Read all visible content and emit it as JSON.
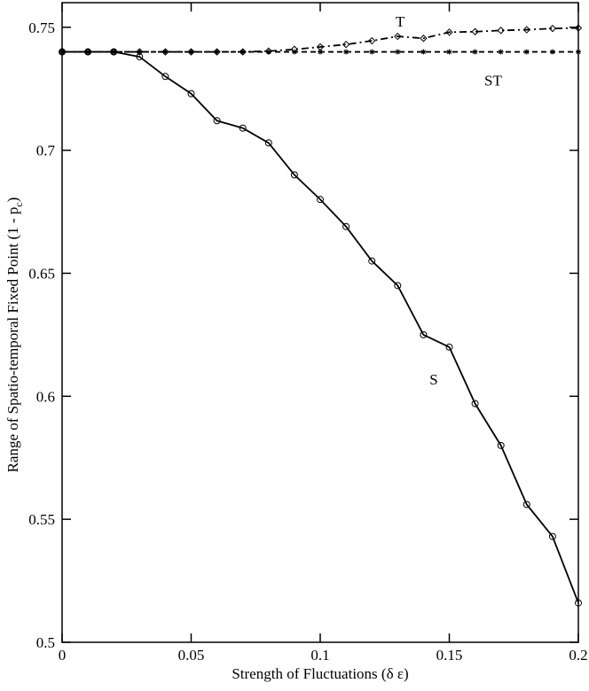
{
  "chart_data": {
    "type": "line",
    "xlabel": "Strength of Fluctuations  (δ ε)",
    "ylabel": [
      "Range of Spatio-temporal Fixed Point  (1 - p",
      "c",
      ")"
    ],
    "x": [
      0,
      0.01,
      0.02,
      0.03,
      0.04,
      0.05,
      0.06,
      0.07,
      0.08,
      0.09,
      0.1,
      0.11,
      0.12,
      0.13,
      0.14,
      0.15,
      0.16,
      0.17,
      0.18,
      0.19,
      0.2
    ],
    "series": [
      {
        "name": "S",
        "color": "#000000",
        "marker": "circle",
        "dash": "solid",
        "values": [
          0.74,
          0.74,
          0.74,
          0.738,
          0.73,
          0.723,
          0.712,
          0.709,
          0.703,
          0.69,
          0.68,
          0.669,
          0.655,
          0.645,
          0.625,
          0.62,
          0.597,
          0.58,
          0.556,
          0.543,
          0.516
        ]
      },
      {
        "name": "T",
        "color": "#000000",
        "marker": "diamond",
        "dash": "dashdot",
        "values": [
          0.74,
          0.74,
          0.74,
          0.74,
          0.74,
          0.74,
          0.74,
          0.74,
          0.7403,
          0.741,
          0.742,
          0.743,
          0.7445,
          0.7463,
          0.7455,
          0.748,
          0.7482,
          0.7487,
          0.749,
          0.7495,
          0.7497
        ]
      },
      {
        "name": "ST",
        "color": "#000000",
        "marker": "star",
        "dash": "dashed",
        "values": [
          0.74,
          0.74,
          0.74,
          0.74,
          0.74,
          0.74,
          0.74,
          0.74,
          0.74,
          0.74,
          0.74,
          0.74,
          0.74,
          0.74,
          0.74,
          0.74,
          0.74,
          0.74,
          0.74,
          0.74,
          0.74
        ]
      }
    ],
    "xlim": [
      0,
      0.2
    ],
    "ylim": [
      0.5,
      0.76
    ],
    "xticks": [
      0,
      0.05,
      0.1,
      0.15,
      0.2
    ],
    "yticks": [
      0.5,
      0.55,
      0.6,
      0.65,
      0.7,
      0.75
    ],
    "grid": false
  }
}
